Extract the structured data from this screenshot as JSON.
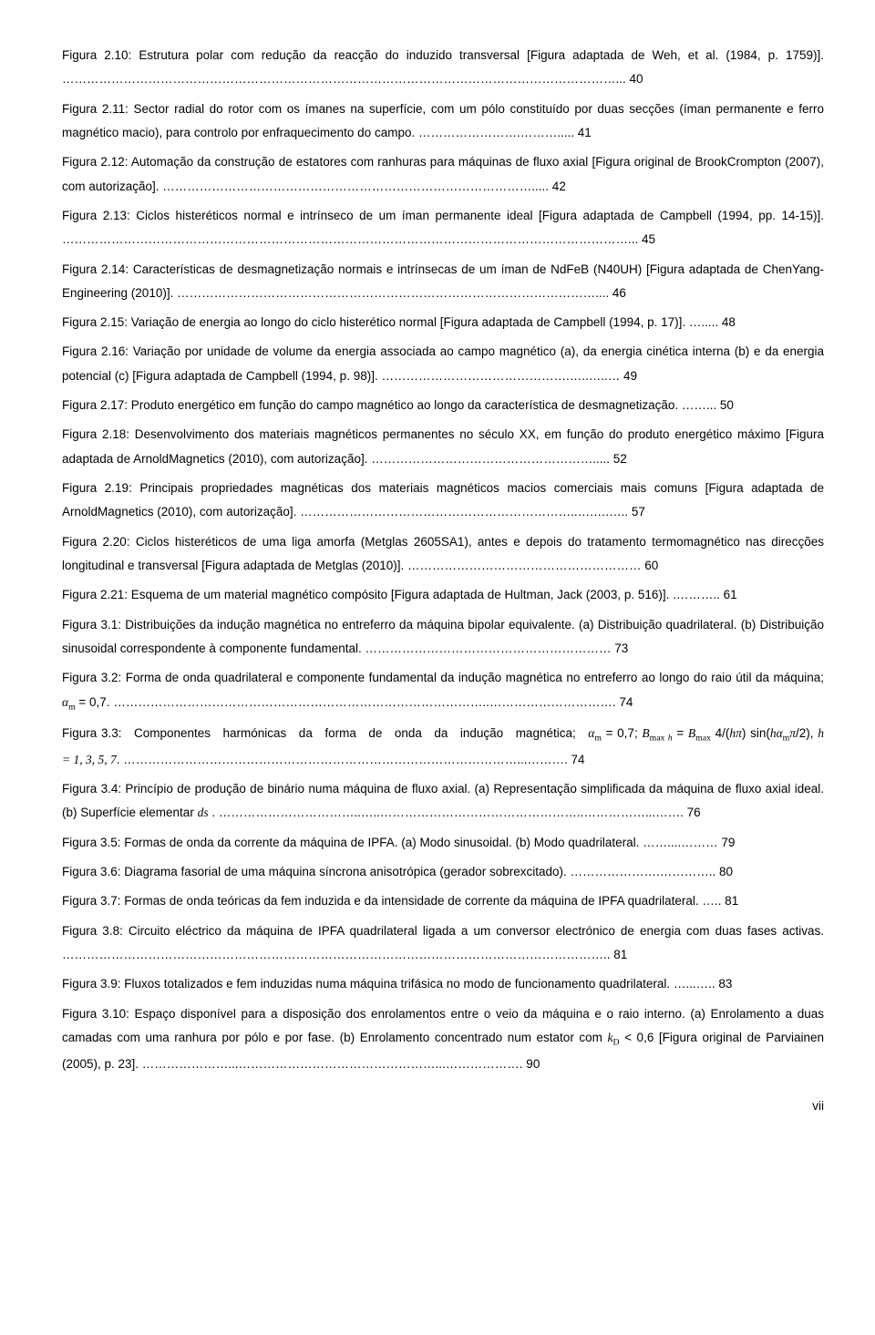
{
  "entries": [
    {
      "text": "Figura 2.10: Estrutura polar com redução da reacção do induzido transversal [Figura adaptada de Weh, et al. (1984, p. 1759)]. ………………………………………………………………………………………………………………………... 40"
    },
    {
      "text": "Figura 2.11: Sector radial do rotor com os ímanes na superfície, com um pólo constituído por duas secções (íman permanente e ferro magnético macio), para controlo por enfraquecimento do campo. …………………….………..... 41"
    },
    {
      "text": "Figura 2.12: Automação da construção de estatores com ranhuras para máquinas de fluxo axial [Figura original de BrookCrompton (2007), com autorização]. ………………………………………………………………………………..... 42"
    },
    {
      "text": "Figura 2.13: Ciclos histeréticos normal e intrínseco de um íman permanente ideal [Figura adaptada de Campbell (1994, pp. 14-15)]. …………………………………………………………………………………………………………………………... 45"
    },
    {
      "text": "Figura 2.14: Características de desmagnetização normais e intrínsecas de um íman de NdFeB (N40UH) [Figura adaptada de ChenYang-Engineering (2010)]. ………………………………………………………………………………………….... 46"
    },
    {
      "text": "Figura 2.15: Variação de energia ao longo do ciclo histerético normal [Figura adaptada de Campbell (1994, p. 17)]. …..... 48"
    },
    {
      "text": "Figura 2.16: Variação por unidade de volume da energia associada ao campo magnético (a), da energia cinética interna (b) e da energia potencial (c) [Figura adaptada de Campbell (1994, p. 98)]. ……………………………………….…..…..… 49"
    },
    {
      "text": "Figura 2.17: Produto energético em função do campo magnético ao longo da característica de desmagnetização. ……... 50"
    },
    {
      "text": "Figura 2.18: Desenvolvimento dos materiais magnéticos permanentes no século XX, em função do produto energético máximo [Figura adaptada de ArnoldMagnetics (2010), com autorização]. ………………………………………………..... 52"
    },
    {
      "text": "Figura 2.19: Principais propriedades magnéticas dos materiais magnéticos macios comerciais mais comuns [Figura adaptada de ArnoldMagnetics (2010), com autorização]. …………………………………………………………..….….….. 57"
    },
    {
      "text": "Figura 2.20: Ciclos histeréticos de uma liga amorfa (Metglas 2605SA1), antes e depois do tratamento termomagnético nas direcções longitudinal e transversal [Figura adaptada de Metglas (2010)]. ………………………………………………… 60"
    },
    {
      "text": "Figura 2.21: Esquema de um material magnético compósito [Figura adaptada de Hultman, Jack (2003, p. 516)]. .……….. 61"
    },
    {
      "text": "Figura 3.1: Distribuições da indução magnética no entreferro da máquina bipolar equivalente. (a) Distribuição quadrilateral. (b) Distribuição sinusoidal correspondente à componente fundamental. …………………………………………………… 73"
    },
    {
      "special": "eq3_2"
    },
    {
      "special": "eq3_3"
    },
    {
      "special": "eq3_4"
    },
    {
      "text": "Figura 3.5: Formas de onda da corrente da máquina de IPFA. (a) Modo sinusoidal. (b) Modo quadrilateral. ……....……… 79"
    },
    {
      "text": "Figura 3.6: Diagrama fasorial de uma máquina síncrona anisotrópica (gerador sobrexcitado). ………………….………….. 80"
    },
    {
      "text": "Figura 3.7: Formas de onda teóricas da fem induzida e da intensidade de corrente da máquina de IPFA quadrilateral. ….. 81"
    },
    {
      "text": "Figura 3.8: Circuito eléctrico da máquina de IPFA quadrilateral ligada a um conversor electrónico de energia com duas fases activas. …………………………………………………………………………………………………………………….. 81"
    },
    {
      "text": "Figura 3.9: Fluxos totalizados e fem induzidas numa máquina trifásica no modo de funcionamento quadrilateral. …...….. 83"
    },
    {
      "special": "eq3_10"
    }
  ],
  "formulas": {
    "eq3_2": {
      "prefix": "Figura 3.2: Forma de onda quadrilateral e componente fundamental da indução magnética no entreferro ao longo do raio útil da máquina; ",
      "suffix": ". ………………………………………………………………………………..…………………………. 74"
    },
    "eq3_3": {
      "prefix": "Figura 3.3: Componentes harmónicas da forma de onda da indução magnética; ",
      "mid_suffix": "; ",
      "after_eq": ", ",
      "hvals": "h = 1, 3, 5, 7",
      "suffix": ". ……………………………………………………………………………………...………. 74"
    },
    "eq3_4": {
      "prefix": "Figura 3.4: Princípio de produção de binário numa máquina de fluxo axial. (a) Representação simplificada da máquina de fluxo axial ideal. (b) Superfície elementar ",
      "suffix": ". ……………………………..…..…………………………………………..……………...……. 76"
    },
    "eq3_10": {
      "prefix": "Figura 3.10: Espaço disponível para a disposição dos enrolamentos entre o veio da máquina e o raio interno. (a) Enrolamento a duas camadas com uma ranhura por pólo e por fase. (b) Enrolamento concentrado num estator com ",
      "mid": " [Figura original de Parviainen (2005), p. 23]. …………………...…………………………………………...………………. 90"
    }
  },
  "page_number": "vii"
}
